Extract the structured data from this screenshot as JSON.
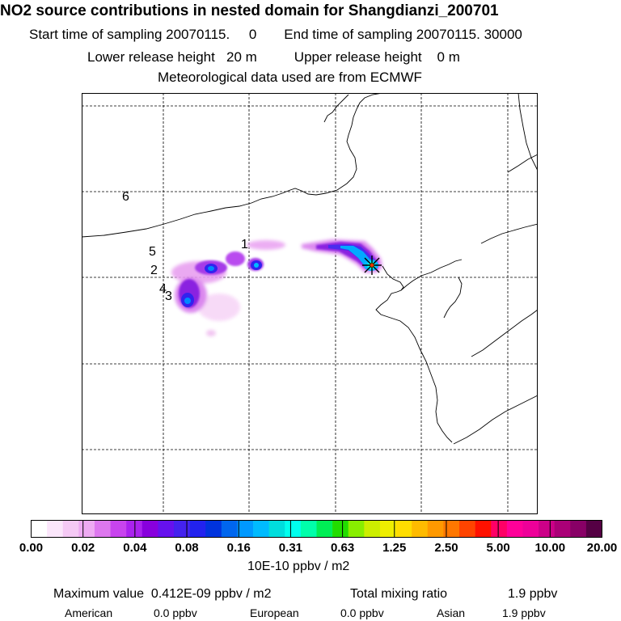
{
  "header": {
    "title": "NO2 source contributions in nested domain for Shangdianzi_200701",
    "start_label": "Start time of sampling 20070115.     0",
    "end_label": "End time of sampling 20070115. 30000",
    "lower_release": "Lower release height   20 m",
    "upper_release": "Upper release height    0 m",
    "meteo": "Meteorological data used are from ECMWF"
  },
  "map": {
    "source_labels": [
      "1",
      "2",
      "3",
      "4",
      "5",
      "6"
    ],
    "receptor_marker": "receptor-star-icon",
    "coastline_color": "#000000",
    "grid_style": "dashed"
  },
  "colorbar": {
    "colors": [
      "#ffffff",
      "#fbe6fb",
      "#f5c9f5",
      "#eeaaf2",
      "#dd77ee",
      "#c844ee",
      "#aa22ee",
      "#8800dd",
      "#6611ee",
      "#4422ee",
      "#2222ee",
      "#0033dd",
      "#0066ee",
      "#0099ff",
      "#00bbff",
      "#00dddd",
      "#00ffee",
      "#00ffaa",
      "#00ee55",
      "#22dd00",
      "#88ee00",
      "#ccee00",
      "#eeee00",
      "#ffdd00",
      "#ffbb00",
      "#ff9900",
      "#ff7700",
      "#ff4400",
      "#ff1100",
      "#ff0066",
      "#ff0099",
      "#ee0099",
      "#cc0088",
      "#aa0077",
      "#880066",
      "#550044"
    ],
    "tick_labels": [
      "0.00",
      "0.02",
      "0.04",
      "0.08",
      "0.16",
      "0.31",
      "0.63",
      "1.25",
      "2.50",
      "5.00",
      "10.00",
      "20.00"
    ],
    "unit": "10E-10 ppbv / m2"
  },
  "stats": {
    "max_value": "Maximum value  0.412E-09 ppbv / m2",
    "total_label": "Total mixing ratio",
    "total_value": "1.9 ppbv",
    "american_label": "American",
    "american_value": "0.0 ppbv",
    "european_label": "European",
    "european_value": "0.0 ppbv",
    "asian_label": "Asian",
    "asian_value": "1.9 ppbv"
  }
}
